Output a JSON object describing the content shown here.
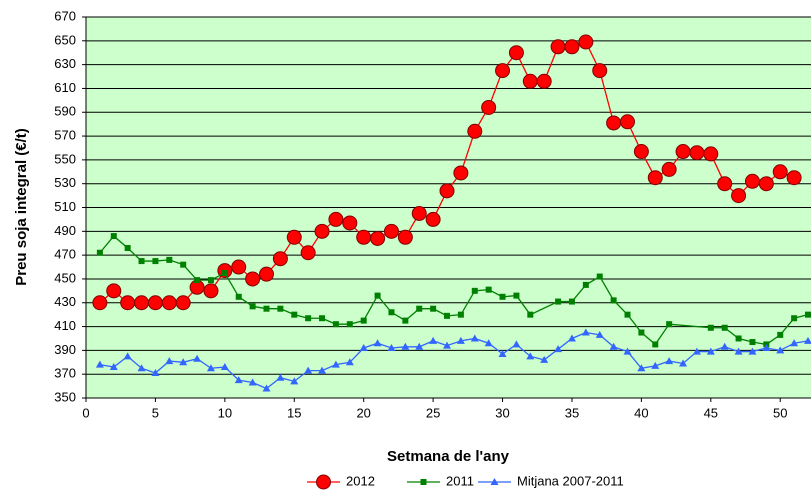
{
  "chart_data": {
    "type": "line",
    "xlabel": "Setmana de l'any",
    "ylabel": "Preu soja integral (€/t)",
    "xlim": [
      0,
      52
    ],
    "xticks": [
      0,
      5,
      10,
      15,
      20,
      25,
      30,
      35,
      40,
      45,
      50
    ],
    "ylim": [
      350,
      670
    ],
    "yticks": [
      350,
      370,
      390,
      410,
      430,
      450,
      470,
      490,
      510,
      530,
      550,
      570,
      590,
      610,
      630,
      650,
      670
    ],
    "grid": true,
    "legend": "bottom",
    "background": "#ccffcc",
    "series": [
      {
        "name": "2012",
        "color": "#ff0000",
        "marker": "circle",
        "x": [
          1,
          2,
          3,
          4,
          5,
          6,
          7,
          8,
          9,
          10,
          11,
          12,
          13,
          14,
          15,
          16,
          17,
          18,
          19,
          20,
          21,
          22,
          23,
          24,
          25,
          26,
          27,
          28,
          29,
          30,
          31,
          32,
          33,
          34,
          35,
          36,
          37,
          38,
          39,
          40,
          41,
          42,
          43,
          44,
          45,
          46,
          47,
          48,
          49,
          50,
          51
        ],
        "values": [
          430,
          440,
          430,
          430,
          430,
          430,
          430,
          443,
          440,
          457,
          460,
          450,
          454,
          467,
          485,
          472,
          490,
          500,
          497,
          485,
          484,
          490,
          485,
          505,
          500,
          524,
          539,
          574,
          594,
          625,
          640,
          616,
          616,
          645,
          645,
          649,
          625,
          581,
          582,
          557,
          535,
          542,
          557,
          556,
          555,
          530,
          520,
          532,
          530,
          540,
          535
        ]
      },
      {
        "name": "2011",
        "color": "#008000",
        "marker": "square",
        "x": [
          1,
          2,
          3,
          4,
          5,
          6,
          7,
          8,
          9,
          10,
          11,
          12,
          13,
          14,
          15,
          16,
          17,
          18,
          19,
          20,
          21,
          22,
          23,
          24,
          25,
          26,
          27,
          28,
          29,
          30,
          31,
          32,
          34,
          35,
          36,
          37,
          38,
          39,
          40,
          41,
          42,
          45,
          46,
          47,
          48,
          49,
          50,
          51,
          52
        ],
        "values": [
          472,
          486,
          476,
          465,
          465,
          466,
          462,
          449,
          449,
          455,
          435,
          427,
          425,
          425,
          420,
          417,
          417,
          412,
          412,
          415,
          436,
          422,
          415,
          425,
          425,
          419,
          420,
          440,
          441,
          435,
          436,
          420,
          431,
          431,
          445,
          452,
          432,
          420,
          405,
          395,
          412,
          409,
          409,
          400,
          397,
          395,
          403,
          417,
          420
        ]
      },
      {
        "name": "Mitjana 2007-2011",
        "color": "#3366ff",
        "marker": "triangle",
        "x": [
          1,
          2,
          3,
          4,
          5,
          6,
          7,
          8,
          9,
          10,
          11,
          12,
          13,
          14,
          15,
          16,
          17,
          18,
          19,
          20,
          21,
          22,
          23,
          24,
          25,
          26,
          27,
          28,
          29,
          30,
          31,
          32,
          33,
          34,
          35,
          36,
          37,
          38,
          39,
          40,
          41,
          42,
          43,
          44,
          45,
          46,
          47,
          48,
          49,
          50,
          51,
          52
        ],
        "values": [
          378,
          376,
          385,
          375,
          371,
          381,
          380,
          383,
          375,
          376,
          365,
          363,
          358,
          367,
          364,
          373,
          373,
          378,
          380,
          392,
          396,
          392,
          393,
          393,
          398,
          394,
          398,
          400,
          396,
          387,
          395,
          385,
          382,
          391,
          400,
          405,
          403,
          393,
          389,
          375,
          377,
          381,
          379,
          389,
          389,
          393,
          389,
          389,
          392,
          390,
          396,
          398
        ]
      }
    ]
  }
}
